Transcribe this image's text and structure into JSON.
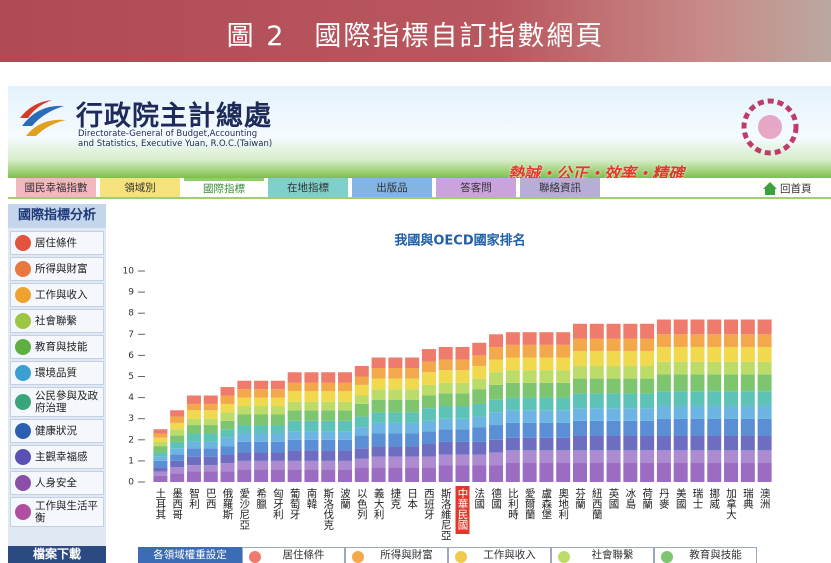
{
  "banner": {
    "title": "圖 2　國際指標自訂指數網頁"
  },
  "header": {
    "agency": "行政院主計總處",
    "english": [
      "Directorate-General of Budget,Accounting",
      "and Statistics, Executive Yuan, R.O.C.(Taiwan)"
    ],
    "slogan": "熱誠・公正・效率・精確"
  },
  "nav": {
    "tabs": [
      "國民幸福指數",
      "領域別",
      "國際指標",
      "在地指標",
      "出版品",
      "答客問",
      "聯絡資訊"
    ],
    "home": "回首頁"
  },
  "sidebar": {
    "title": "國際指標分析",
    "items": [
      "居住條件",
      "所得與財富",
      "工作與收入",
      "社會聯繫",
      "教育與技能",
      "環境品質",
      "公民參與及政府治理",
      "健康狀況",
      "主觀幸福感",
      "人身安全",
      "工作與生活平衡"
    ],
    "download": "檔案下載"
  },
  "weights": {
    "title": "各領域權重設定",
    "columns": [
      "居住條件",
      "所得與財富",
      "工作與收入",
      "社會聯繫",
      "教育與技能"
    ]
  },
  "chart_data": {
    "type": "bar",
    "stacked": true,
    "title": "我國與OECD國家排名",
    "categories": [
      "土耳其",
      "墨西哥",
      "智利",
      "巴西",
      "俄羅斯",
      "愛沙尼亞",
      "希臘",
      "匈牙利",
      "葡萄牙",
      "南韓",
      "斯洛伐克",
      "波蘭",
      "以色列",
      "義大利",
      "捷克",
      "日本",
      "西班牙",
      "斯洛維尼亞",
      "中華民國",
      "法國",
      "德國",
      "比利時",
      "愛爾蘭",
      "盧森堡",
      "奧地利",
      "芬蘭",
      "紐西蘭",
      "英國",
      "冰島",
      "荷蘭",
      "丹麥",
      "美國",
      "瑞士",
      "挪威",
      "加拿大",
      "瑞典",
      "澳洲"
    ],
    "highlight_index": 18,
    "highlight_color": "#e2382c",
    "ylim": [
      0,
      10
    ],
    "yticks": [
      0,
      1,
      2,
      3,
      4,
      5,
      6,
      7,
      8,
      9,
      10
    ],
    "series": [
      {
        "color": "#9b6cc2",
        "values": [
          0.3,
          0.4,
          0.5,
          0.5,
          0.5,
          0.6,
          0.6,
          0.6,
          0.6,
          0.6,
          0.6,
          0.6,
          0.7,
          0.7,
          0.7,
          0.7,
          0.7,
          0.8,
          0.8,
          0.8,
          0.8,
          0.9,
          0.9,
          0.9,
          0.9,
          0.9,
          0.9,
          0.9,
          0.9,
          0.9,
          0.9,
          0.9,
          0.9,
          0.9,
          0.9,
          0.9,
          0.9
        ]
      },
      {
        "color": "#ad8bd0",
        "values": [
          0.2,
          0.3,
          0.3,
          0.3,
          0.4,
          0.4,
          0.4,
          0.4,
          0.4,
          0.4,
          0.4,
          0.4,
          0.4,
          0.5,
          0.5,
          0.5,
          0.5,
          0.5,
          0.5,
          0.5,
          0.6,
          0.6,
          0.6,
          0.6,
          0.6,
          0.6,
          0.6,
          0.6,
          0.6,
          0.6,
          0.6,
          0.6,
          0.6,
          0.6,
          0.6,
          0.6,
          0.6
        ]
      },
      {
        "color": "#6d6ec2",
        "values": [
          0.2,
          0.3,
          0.4,
          0.4,
          0.4,
          0.4,
          0.4,
          0.4,
          0.5,
          0.5,
          0.5,
          0.5,
          0.5,
          0.5,
          0.5,
          0.5,
          0.6,
          0.6,
          0.6,
          0.6,
          0.6,
          0.6,
          0.6,
          0.6,
          0.6,
          0.7,
          0.7,
          0.7,
          0.7,
          0.7,
          0.7,
          0.7,
          0.7,
          0.7,
          0.7,
          0.7,
          0.7
        ]
      },
      {
        "color": "#5b8fd5",
        "values": [
          0.3,
          0.3,
          0.4,
          0.4,
          0.4,
          0.5,
          0.5,
          0.5,
          0.5,
          0.5,
          0.5,
          0.5,
          0.6,
          0.6,
          0.6,
          0.6,
          0.6,
          0.6,
          0.6,
          0.7,
          0.7,
          0.7,
          0.7,
          0.7,
          0.7,
          0.7,
          0.7,
          0.7,
          0.7,
          0.7,
          0.8,
          0.8,
          0.8,
          0.8,
          0.8,
          0.8,
          0.8
        ]
      },
      {
        "color": "#6cb5e2",
        "values": [
          0.2,
          0.3,
          0.3,
          0.3,
          0.4,
          0.4,
          0.4,
          0.4,
          0.4,
          0.4,
          0.4,
          0.4,
          0.4,
          0.5,
          0.5,
          0.5,
          0.5,
          0.5,
          0.5,
          0.5,
          0.6,
          0.6,
          0.6,
          0.6,
          0.6,
          0.6,
          0.6,
          0.6,
          0.6,
          0.6,
          0.6,
          0.6,
          0.6,
          0.6,
          0.6,
          0.6,
          0.6
        ]
      },
      {
        "color": "#5ec3b7",
        "values": [
          0.2,
          0.3,
          0.4,
          0.4,
          0.4,
          0.4,
          0.4,
          0.4,
          0.5,
          0.5,
          0.5,
          0.5,
          0.5,
          0.5,
          0.5,
          0.5,
          0.6,
          0.6,
          0.6,
          0.6,
          0.6,
          0.6,
          0.6,
          0.6,
          0.6,
          0.7,
          0.7,
          0.7,
          0.7,
          0.7,
          0.7,
          0.7,
          0.7,
          0.7,
          0.7,
          0.7,
          0.7
        ]
      },
      {
        "color": "#7dc56e",
        "values": [
          0.3,
          0.3,
          0.4,
          0.4,
          0.4,
          0.5,
          0.5,
          0.5,
          0.5,
          0.5,
          0.5,
          0.5,
          0.6,
          0.6,
          0.6,
          0.6,
          0.6,
          0.6,
          0.6,
          0.7,
          0.7,
          0.7,
          0.7,
          0.7,
          0.7,
          0.7,
          0.7,
          0.7,
          0.7,
          0.7,
          0.8,
          0.8,
          0.8,
          0.8,
          0.8,
          0.8,
          0.8
        ]
      },
      {
        "color": "#bcdc6a",
        "values": [
          0.2,
          0.3,
          0.3,
          0.3,
          0.4,
          0.4,
          0.4,
          0.4,
          0.4,
          0.4,
          0.4,
          0.4,
          0.4,
          0.5,
          0.5,
          0.5,
          0.5,
          0.5,
          0.5,
          0.5,
          0.6,
          0.6,
          0.6,
          0.6,
          0.6,
          0.6,
          0.6,
          0.6,
          0.6,
          0.6,
          0.6,
          0.6,
          0.6,
          0.6,
          0.6,
          0.6,
          0.6
        ]
      },
      {
        "color": "#f1d94d",
        "values": [
          0.2,
          0.3,
          0.4,
          0.4,
          0.4,
          0.4,
          0.4,
          0.4,
          0.5,
          0.5,
          0.5,
          0.5,
          0.5,
          0.5,
          0.5,
          0.5,
          0.6,
          0.6,
          0.6,
          0.6,
          0.6,
          0.6,
          0.6,
          0.6,
          0.6,
          0.7,
          0.7,
          0.7,
          0.7,
          0.7,
          0.7,
          0.7,
          0.7,
          0.7,
          0.7,
          0.7,
          0.7
        ]
      },
      {
        "color": "#f3a84b",
        "values": [
          0.2,
          0.3,
          0.3,
          0.3,
          0.4,
          0.4,
          0.4,
          0.4,
          0.4,
          0.4,
          0.4,
          0.4,
          0.4,
          0.5,
          0.5,
          0.5,
          0.5,
          0.5,
          0.5,
          0.5,
          0.6,
          0.6,
          0.6,
          0.6,
          0.6,
          0.6,
          0.6,
          0.6,
          0.6,
          0.6,
          0.6,
          0.6,
          0.6,
          0.6,
          0.6,
          0.6,
          0.6
        ]
      },
      {
        "color": "#ee7b6b",
        "values": [
          0.2,
          0.3,
          0.4,
          0.4,
          0.4,
          0.4,
          0.4,
          0.4,
          0.5,
          0.5,
          0.5,
          0.5,
          0.5,
          0.5,
          0.5,
          0.5,
          0.6,
          0.6,
          0.6,
          0.6,
          0.6,
          0.6,
          0.6,
          0.6,
          0.6,
          0.7,
          0.7,
          0.7,
          0.7,
          0.7,
          0.7,
          0.7,
          0.7,
          0.7,
          0.7,
          0.7,
          0.7
        ]
      }
    ]
  }
}
